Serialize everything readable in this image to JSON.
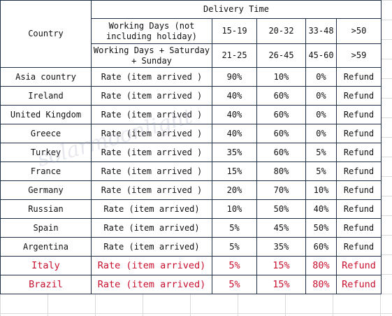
{
  "table": {
    "title": "Delivery Time",
    "country_header": "Country",
    "row_labels": [
      "Working Days (not including holiday)",
      "Working Days + Saturday + Sunday"
    ],
    "ranges_working": [
      "15-19",
      "20-32",
      "33-48",
      ">50"
    ],
    "ranges_weekend": [
      "21-25",
      "26-45",
      "45-60",
      ">59"
    ],
    "rows": [
      {
        "country": "Asia country",
        "rate": "Rate (item arrived )",
        "v1": "90%",
        "v2": "10%",
        "v3": "0%",
        "v4": "Refund"
      },
      {
        "country": "Ireland",
        "rate": "Rate (item arrived )",
        "v1": "40%",
        "v2": "60%",
        "v3": "0%",
        "v4": "Refund"
      },
      {
        "country": "United Kingdom",
        "rate": "Rate (item arrived )",
        "v1": "40%",
        "v2": "60%",
        "v3": "0%",
        "v4": "Refund"
      },
      {
        "country": "Greece",
        "rate": "Rate (item arrived )",
        "v1": "40%",
        "v2": "60%",
        "v3": "0%",
        "v4": "Refund"
      },
      {
        "country": "Turkey",
        "rate": "Rate (item arrived )",
        "v1": "35%",
        "v2": "60%",
        "v3": "5%",
        "v4": "Refund"
      },
      {
        "country": "France",
        "rate": "Rate (item arrived )",
        "v1": "15%",
        "v2": "80%",
        "v3": "5%",
        "v4": "Refund"
      },
      {
        "country": "Germany",
        "rate": "Rate (item arrived )",
        "v1": "20%",
        "v2": "70%",
        "v3": "10%",
        "v4": "Refund"
      },
      {
        "country": "Russian",
        "rate": "Rate (item arrived)",
        "v1": "10%",
        "v2": "50%",
        "v3": "40%",
        "v4": "Refund"
      },
      {
        "country": "Spain",
        "rate": "Rate (item arrived)",
        "v1": "5%",
        "v2": "45%",
        "v3": "50%",
        "v4": "Refund"
      },
      {
        "country": "Argentina",
        "rate": "Rate (item arrived)",
        "v1": "5%",
        "v2": "35%",
        "v3": "60%",
        "v4": "Refund"
      },
      {
        "country": "Italy",
        "rate": "Rate (item arrived)",
        "v1": "5%",
        "v2": "15%",
        "v3": "80%",
        "v4": "Refund"
      },
      {
        "country": "Brazil",
        "rate": "Rate (item arrived)",
        "v1": "5%",
        "v2": "15%",
        "v3": "80%",
        "v4": "Refund"
      }
    ]
  },
  "watermark": "solarmoonlight",
  "colors": {
    "border": "#1f2f4a",
    "highlight_text": "#c8102e",
    "grid": "#d9d9d9"
  }
}
